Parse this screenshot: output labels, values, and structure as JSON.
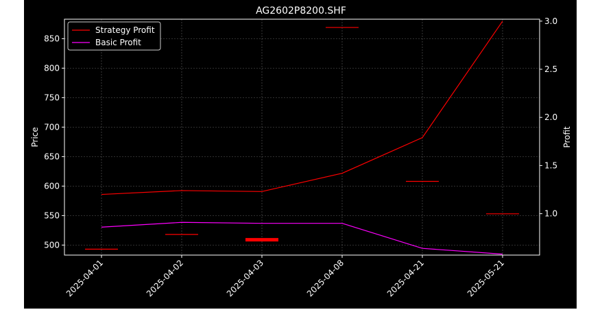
{
  "chart_data": {
    "type": "line",
    "title": "AG2602P8200.SHF",
    "ylabel": "Price",
    "y2label": "Profit",
    "categories": [
      "2025-04-01",
      "2025-04-02",
      "2025-04-03",
      "2025-04-08",
      "2025-04-21",
      "2025-05-21"
    ],
    "ylim": [
      483,
      883
    ],
    "y2lim": [
      0.57,
      3.02
    ],
    "yticks": [
      500,
      550,
      600,
      650,
      700,
      750,
      800,
      850
    ],
    "y2ticks": [
      1.0,
      1.5,
      2.0,
      2.5,
      3.0
    ],
    "y2tick_labels": [
      "1.0",
      "1.5",
      "2.0",
      "2.5",
      "3.0"
    ],
    "grid": true,
    "legend_position": "top-left",
    "series": [
      {
        "name": "Strategy Profit",
        "axis": "right",
        "color": "#ff0000",
        "values": [
          1.2,
          1.24,
          1.23,
          1.42,
          1.79,
          3.0
        ]
      },
      {
        "name": "Basic Profit",
        "axis": "right",
        "color": "#ff00ff",
        "values": [
          0.86,
          0.91,
          0.9,
          0.9,
          0.64,
          0.58
        ]
      }
    ],
    "price_marks": {
      "axis": "left",
      "color": "#ff0000",
      "values": [
        493,
        518,
        509,
        869,
        608,
        553
      ],
      "bold": [
        false,
        false,
        true,
        false,
        false,
        false
      ]
    }
  },
  "colors": {
    "background": "#000000",
    "outer": "#ffffff",
    "text": "#ffffff",
    "grid": "#b0b0b0"
  }
}
